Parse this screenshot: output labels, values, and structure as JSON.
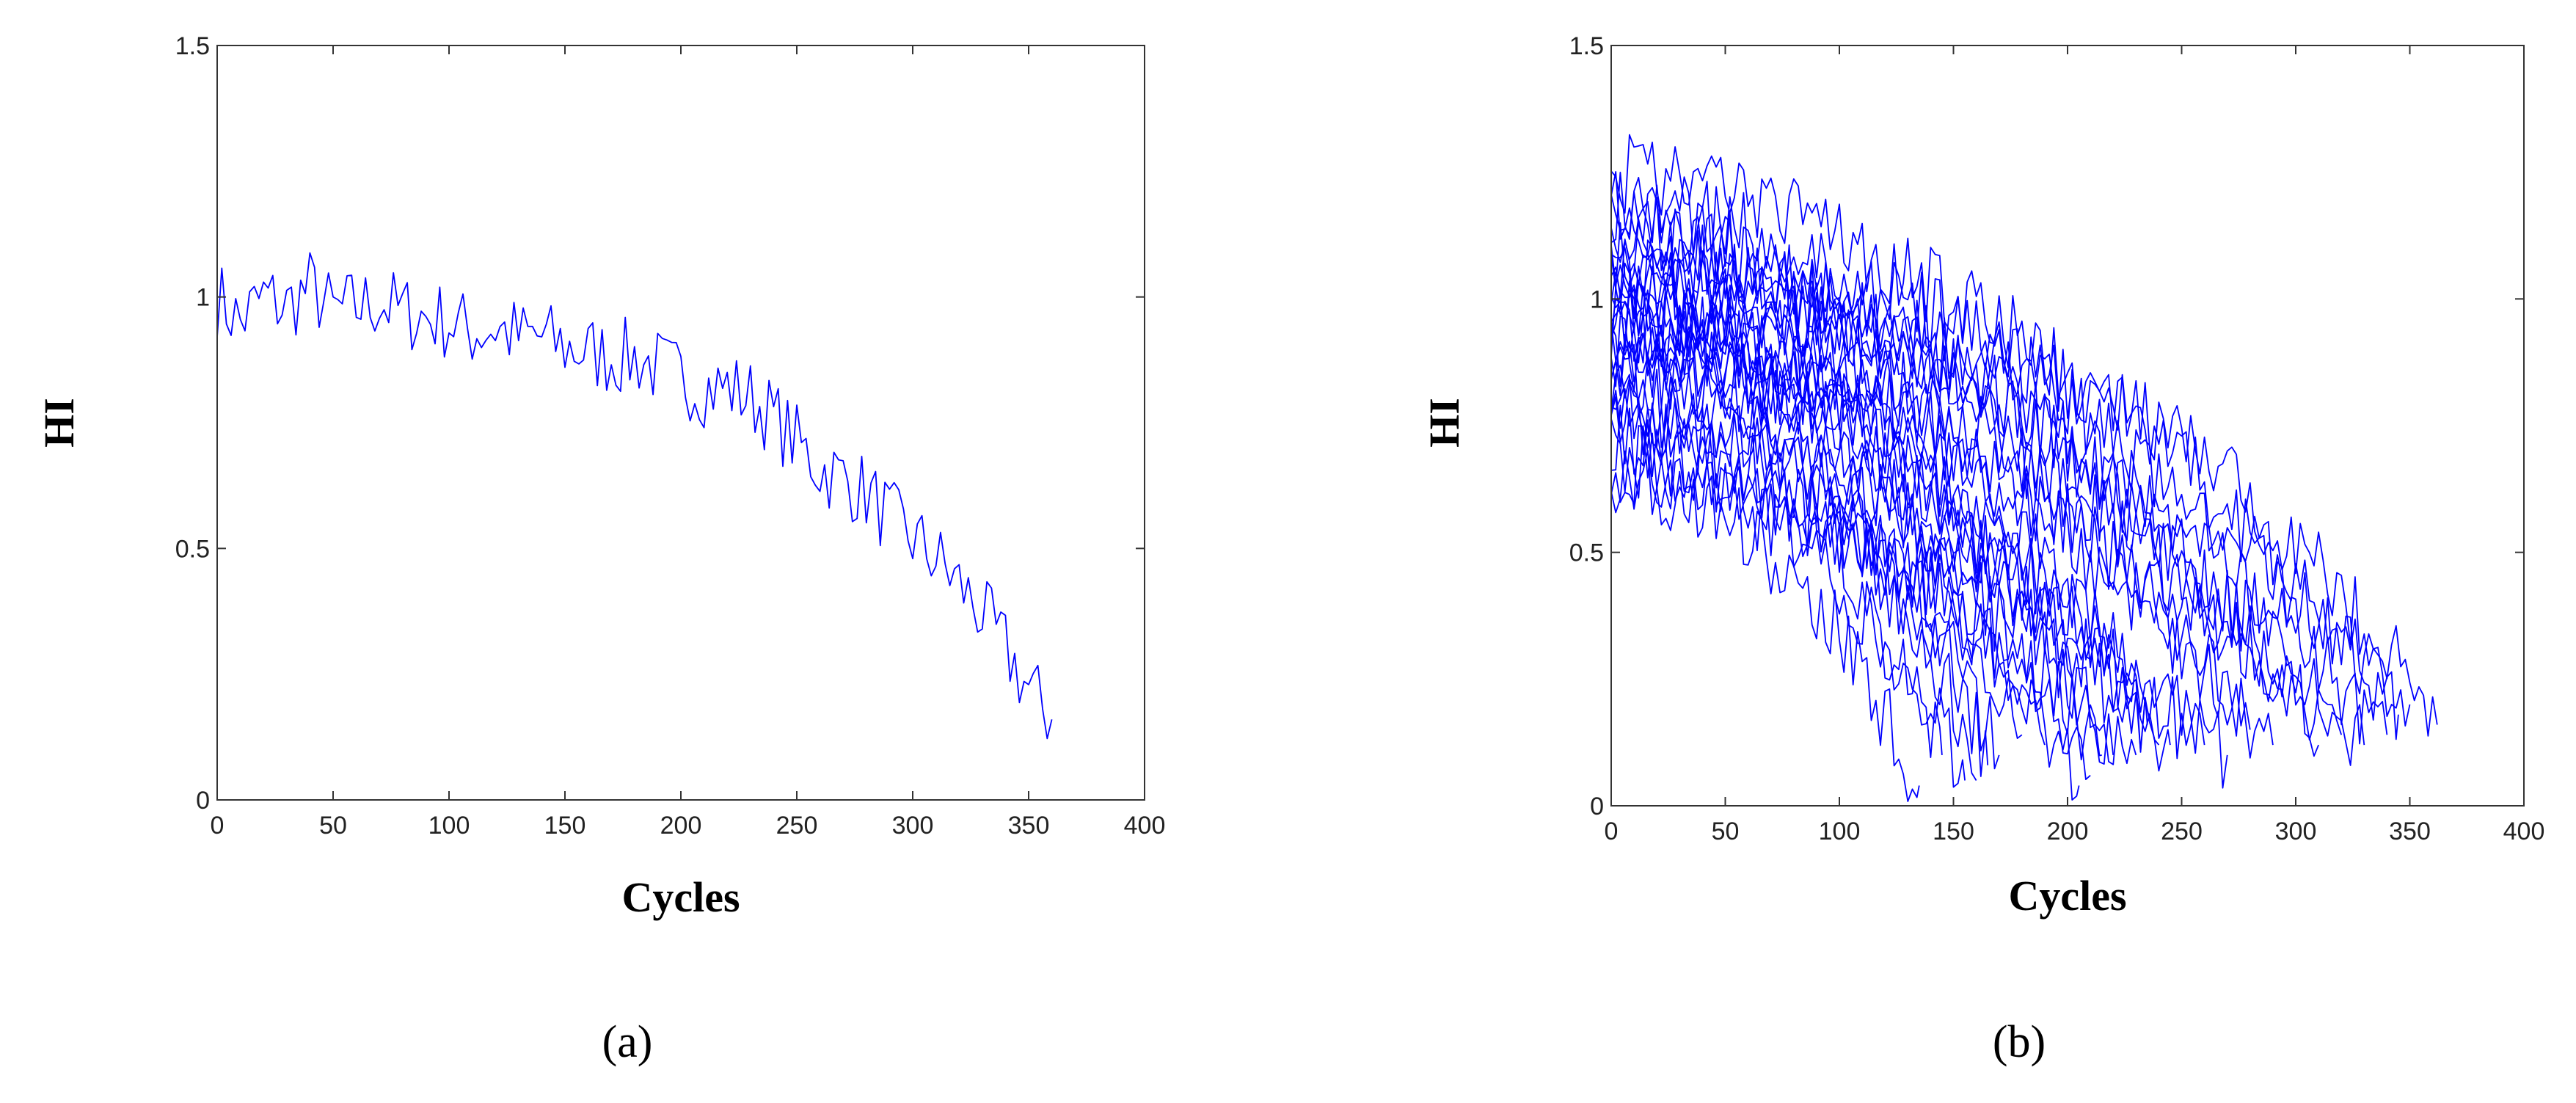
{
  "chart_data": [
    {
      "type": "line",
      "panel_label": "(a)",
      "xlabel": "Cycles",
      "ylabel": "HI",
      "xlim": [
        0,
        400
      ],
      "ylim": [
        0,
        1.5
      ],
      "xticks": [
        "0",
        "50",
        "100",
        "150",
        "200",
        "250",
        "300",
        "350",
        "400"
      ],
      "yticks": [
        "0",
        "0.5",
        "1",
        "1.5"
      ],
      "grid": false,
      "series_color": "#0000ff",
      "series": [
        {
          "x": [
            0,
            10,
            20,
            30,
            40,
            50,
            60,
            70,
            80,
            90,
            100,
            110,
            120,
            130,
            140,
            150,
            160,
            170,
            180,
            190,
            200,
            210,
            220,
            230,
            240,
            250,
            260,
            270,
            280,
            290,
            300,
            310,
            320,
            330,
            340,
            350,
            360
          ],
          "y": [
            1.0,
            0.95,
            1.0,
            0.98,
            1.02,
            0.97,
            0.98,
            0.99,
            0.97,
            0.96,
            0.95,
            0.93,
            0.94,
            0.92,
            0.92,
            0.9,
            0.89,
            0.88,
            0.88,
            0.86,
            0.84,
            0.82,
            0.82,
            0.8,
            0.76,
            0.71,
            0.66,
            0.64,
            0.61,
            0.56,
            0.52,
            0.48,
            0.43,
            0.37,
            0.3,
            0.22,
            0.16
          ]
        }
      ]
    },
    {
      "type": "line",
      "panel_label": "(b)",
      "xlabel": "Cycles",
      "ylabel": "HI",
      "xlim": [
        0,
        400
      ],
      "ylim": [
        0,
        1.5
      ],
      "xticks": [
        "0",
        "50",
        "100",
        "150",
        "200",
        "250",
        "300",
        "350",
        "400"
      ],
      "yticks": [
        "0",
        "0.5",
        "1",
        "1.5"
      ],
      "grid": false,
      "series_color": "#0000ff",
      "series": [
        {
          "x": [
            0,
            50,
            100,
            150,
            200,
            250,
            300,
            350,
            362
          ],
          "y": [
            1.0,
            0.98,
            0.95,
            0.9,
            0.84,
            0.72,
            0.52,
            0.25,
            0.16
          ]
        },
        {
          "x": [
            0,
            50,
            100,
            150,
            200,
            250,
            300,
            340
          ],
          "y": [
            1.05,
            1.02,
            0.96,
            0.86,
            0.72,
            0.55,
            0.33,
            0.14
          ]
        },
        {
          "x": [
            0,
            50,
            100,
            150,
            200,
            250,
            300,
            330
          ],
          "y": [
            1.1,
            1.05,
            0.97,
            0.86,
            0.7,
            0.5,
            0.26,
            0.12
          ]
        },
        {
          "x": [
            0,
            50,
            100,
            150,
            200,
            250,
            290
          ],
          "y": [
            0.95,
            0.93,
            0.85,
            0.72,
            0.54,
            0.32,
            0.12
          ]
        },
        {
          "x": [
            0,
            50,
            100,
            150,
            200,
            250,
            280
          ],
          "y": [
            1.15,
            1.1,
            0.98,
            0.82,
            0.6,
            0.34,
            0.15
          ]
        },
        {
          "x": [
            0,
            50,
            100,
            150,
            200,
            250,
            270
          ],
          "y": [
            0.9,
            0.86,
            0.76,
            0.6,
            0.4,
            0.18,
            0.1
          ]
        },
        {
          "x": [
            0,
            50,
            100,
            150,
            200,
            240
          ],
          "y": [
            1.0,
            0.95,
            0.8,
            0.58,
            0.32,
            0.12
          ]
        },
        {
          "x": [
            0,
            50,
            100,
            150,
            200,
            230
          ],
          "y": [
            0.85,
            0.8,
            0.68,
            0.5,
            0.26,
            0.1
          ]
        },
        {
          "x": [
            0,
            50,
            100,
            150,
            200,
            220
          ],
          "y": [
            1.1,
            1.02,
            0.85,
            0.58,
            0.25,
            0.1
          ]
        },
        {
          "x": [
            0,
            50,
            100,
            150,
            200,
            210
          ],
          "y": [
            0.95,
            0.88,
            0.72,
            0.48,
            0.16,
            0.06
          ]
        },
        {
          "x": [
            0,
            50,
            100,
            150,
            190
          ],
          "y": [
            0.8,
            0.74,
            0.6,
            0.38,
            0.12
          ]
        },
        {
          "x": [
            0,
            50,
            100,
            150,
            180
          ],
          "y": [
            1.05,
            0.98,
            0.78,
            0.44,
            0.14
          ]
        },
        {
          "x": [
            0,
            50,
            100,
            150,
            170
          ],
          "y": [
            0.75,
            0.7,
            0.55,
            0.28,
            0.1
          ]
        },
        {
          "x": [
            0,
            50,
            100,
            150,
            160
          ],
          "y": [
            0.9,
            0.82,
            0.6,
            0.22,
            0.05
          ]
        },
        {
          "x": [
            0,
            50,
            100,
            140,
            155
          ],
          "y": [
            0.7,
            0.62,
            0.45,
            0.2,
            0.05
          ]
        },
        {
          "x": [
            0,
            50,
            100,
            135
          ],
          "y": [
            0.65,
            0.58,
            0.36,
            0.04
          ]
        },
        {
          "x": [
            0,
            50,
            100,
            150,
            200,
            250,
            300,
            350
          ],
          "y": [
            1.2,
            1.15,
            1.05,
            0.95,
            0.8,
            0.62,
            0.42,
            0.2
          ]
        },
        {
          "x": [
            0,
            50,
            100,
            150,
            200,
            250,
            300,
            320
          ],
          "y": [
            0.88,
            0.86,
            0.8,
            0.7,
            0.56,
            0.4,
            0.22,
            0.14
          ]
        },
        {
          "x": [
            0,
            50,
            100,
            150,
            200,
            250,
            300,
            345
          ],
          "y": [
            1.25,
            1.22,
            1.12,
            1.0,
            0.86,
            0.68,
            0.45,
            0.18
          ]
        },
        {
          "x": [
            0,
            50,
            100,
            150,
            200,
            250,
            260
          ],
          "y": [
            1.0,
            0.92,
            0.78,
            0.6,
            0.4,
            0.16,
            0.12
          ]
        },
        {
          "x": [
            0,
            50,
            100,
            150,
            200,
            245
          ],
          "y": [
            0.78,
            0.74,
            0.65,
            0.52,
            0.34,
            0.12
          ]
        },
        {
          "x": [
            0,
            50,
            100,
            150,
            200,
            235
          ],
          "y": [
            1.18,
            1.1,
            0.92,
            0.7,
            0.42,
            0.16
          ]
        },
        {
          "x": [
            0,
            50,
            100,
            150,
            200,
            205
          ],
          "y": [
            0.72,
            0.66,
            0.55,
            0.38,
            0.1,
            0.04
          ]
        },
        {
          "x": [
            0,
            50,
            100,
            150,
            200,
            250,
            295
          ],
          "y": [
            1.12,
            1.08,
            1.0,
            0.88,
            0.72,
            0.5,
            0.25
          ]
        },
        {
          "x": [
            0,
            50,
            100,
            150,
            165
          ],
          "y": [
            0.98,
            0.9,
            0.68,
            0.3,
            0.08
          ]
        },
        {
          "x": [
            0,
            50,
            100,
            145
          ],
          "y": [
            0.82,
            0.74,
            0.5,
            0.1
          ]
        },
        {
          "x": [
            0,
            50,
            100,
            150,
            200,
            215
          ],
          "y": [
            0.68,
            0.64,
            0.54,
            0.4,
            0.2,
            0.1
          ]
        },
        {
          "x": [
            0,
            50,
            100,
            150,
            200,
            250,
            300,
            310
          ],
          "y": [
            0.95,
            0.94,
            0.88,
            0.78,
            0.62,
            0.44,
            0.22,
            0.12
          ]
        }
      ]
    }
  ],
  "panels": [
    {
      "label": "(a)"
    },
    {
      "label": "(b)"
    }
  ]
}
